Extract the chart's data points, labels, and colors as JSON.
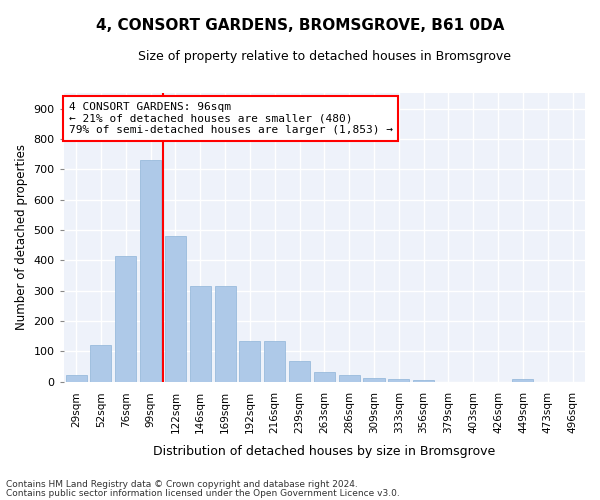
{
  "title": "4, CONSORT GARDENS, BROMSGROVE, B61 0DA",
  "subtitle": "Size of property relative to detached houses in Bromsgrove",
  "xlabel": "Distribution of detached houses by size in Bromsgrove",
  "ylabel": "Number of detached properties",
  "categories": [
    "29sqm",
    "52sqm",
    "76sqm",
    "99sqm",
    "122sqm",
    "146sqm",
    "169sqm",
    "192sqm",
    "216sqm",
    "239sqm",
    "263sqm",
    "286sqm",
    "309sqm",
    "333sqm",
    "356sqm",
    "379sqm",
    "403sqm",
    "426sqm",
    "449sqm",
    "473sqm",
    "496sqm"
  ],
  "values": [
    20,
    120,
    415,
    730,
    480,
    315,
    315,
    135,
    135,
    68,
    30,
    22,
    12,
    10,
    5,
    0,
    0,
    0,
    8,
    0,
    0
  ],
  "bar_color": "#aec9e8",
  "bar_edge_color": "#8fb4d8",
  "property_line_x": 3.5,
  "property_label": "4 CONSORT GARDENS: 96sqm",
  "annotation_line1": "← 21% of detached houses are smaller (480)",
  "annotation_line2": "79% of semi-detached houses are larger (1,853) →",
  "annotation_box_facecolor": "white",
  "annotation_box_edgecolor": "red",
  "vline_color": "red",
  "ylim": [
    0,
    950
  ],
  "yticks": [
    0,
    100,
    200,
    300,
    400,
    500,
    600,
    700,
    800,
    900
  ],
  "footnote1": "Contains HM Land Registry data © Crown copyright and database right 2024.",
  "footnote2": "Contains public sector information licensed under the Open Government Licence v3.0.",
  "bg_color": "#eef2fa",
  "grid_color": "#ffffff"
}
